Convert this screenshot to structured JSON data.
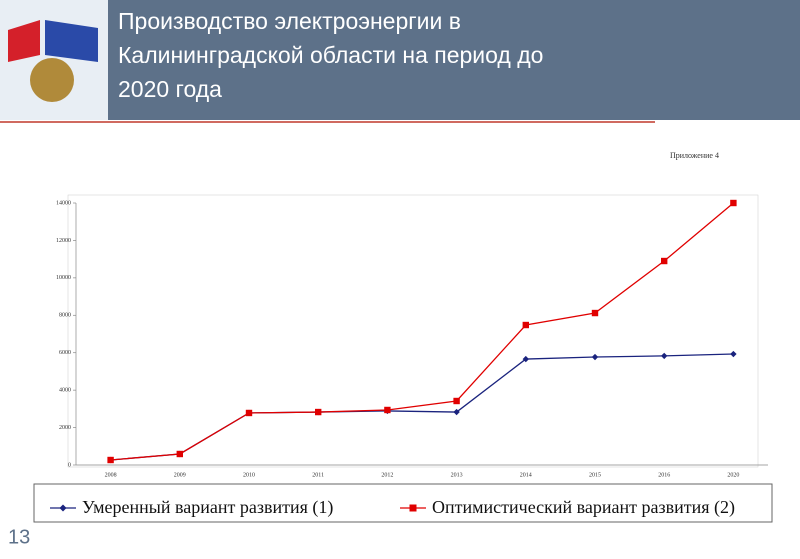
{
  "page_number": "13",
  "chart_data": {
    "type": "line",
    "title": "Производство электроэнергии в Калининградской области на период до 2020 года",
    "annotation": "Приложение 4",
    "categories": [
      "2008",
      "2009",
      "2010",
      "2011",
      "2012",
      "2013",
      "2014",
      "2015",
      "2016",
      "2020"
    ],
    "series": [
      {
        "name": "Умеренный вариант развития (1)",
        "color": "#1a237e",
        "marker": "diamond",
        "values": [
          267,
          588,
          2780,
          2830,
          2890,
          2830,
          5660,
          5770,
          5830,
          5930
        ]
      },
      {
        "name": "Оптимистический вариант развития (2)",
        "color": "#e00000",
        "marker": "square",
        "values": [
          267,
          588,
          2780,
          2830,
          2940,
          3420,
          7480,
          8120,
          10900,
          14000
        ]
      }
    ],
    "ylim": [
      0,
      14000
    ],
    "yticks": [
      0,
      2000,
      4000,
      6000,
      8000,
      10000,
      12000,
      14000
    ],
    "grid": false
  }
}
